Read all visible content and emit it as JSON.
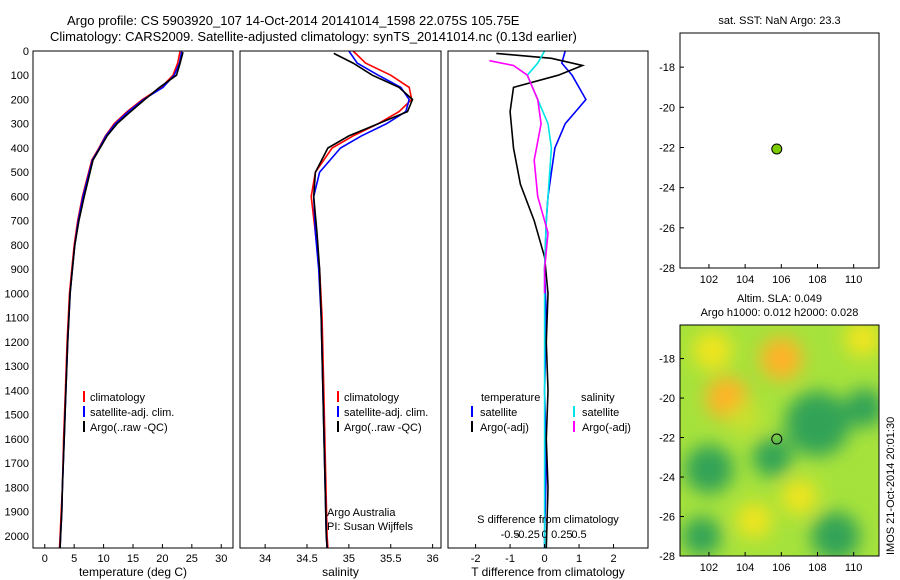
{
  "header": {
    "line1": "Argo profile: CS 5903920_107 14-Oct-2014 20141014_1598 22.075S 105.75E",
    "line2": "Climatology: CARS2009. Satellite-adjusted climatology: synTS_20141014.nc (0.13d earlier)"
  },
  "colors": {
    "climatology": "#ff0000",
    "satellite": "#0000ff",
    "argo": "#000000",
    "sal_satellite": "#00e5e5",
    "sal_argo": "#ff00ff",
    "float": "#7ccd00"
  },
  "depth_axis": {
    "ylim": [
      0,
      2050
    ],
    "ticks": [
      0,
      100,
      200,
      300,
      400,
      500,
      600,
      700,
      800,
      900,
      1000,
      1100,
      1200,
      1300,
      1400,
      1500,
      1600,
      1700,
      1800,
      1900,
      2000
    ]
  },
  "chart_data": [
    {
      "id": "temp",
      "type": "line",
      "xlabel": "temperature (deg C)",
      "xlim": [
        -2,
        32
      ],
      "xticks": [
        0,
        5,
        10,
        15,
        20,
        25,
        30
      ],
      "xtick_labels": [
        "0",
        "5",
        "10",
        "15",
        "20",
        "25",
        "30"
      ],
      "legend": [
        "climatology",
        "satellite-adj. clim.",
        "Argo(..raw -QC)"
      ],
      "series": [
        {
          "name": "climatology",
          "color": "#ff0000",
          "x": [
            23.0,
            22.6,
            21.8,
            19.8,
            16.6,
            14.0,
            11.8,
            10.3,
            9.2,
            8.0,
            6.4,
            5.6,
            5.0,
            4.6,
            4.2,
            3.8,
            3.5,
            3.2,
            3.0,
            2.8,
            2.6,
            2.5
          ],
          "y": [
            0,
            50,
            100,
            150,
            200,
            250,
            300,
            350,
            400,
            450,
            600,
            700,
            800,
            900,
            1000,
            1200,
            1400,
            1600,
            1800,
            1900,
            2000,
            2050
          ]
        },
        {
          "name": "satellite-adj. clim.",
          "color": "#0000ff",
          "x": [
            23.3,
            22.9,
            22.0,
            20.1,
            16.8,
            14.2,
            12.0,
            10.4,
            9.3,
            8.1,
            6.5,
            5.7,
            5.1,
            4.7,
            4.3,
            3.9,
            3.6,
            3.3,
            3.0,
            2.9,
            2.7,
            2.6
          ],
          "y": [
            0,
            50,
            100,
            150,
            200,
            250,
            300,
            350,
            400,
            450,
            600,
            700,
            800,
            900,
            1000,
            1200,
            1400,
            1600,
            1800,
            1900,
            2000,
            2050
          ]
        },
        {
          "name": "Argo(..raw -QC)",
          "color": "#000000",
          "x": [
            23.5,
            23.0,
            22.4,
            19.5,
            17.0,
            14.6,
            12.3,
            10.6,
            9.4,
            8.2,
            6.7,
            5.8,
            5.1,
            4.7,
            4.3,
            3.9,
            3.6,
            3.3,
            3.0,
            2.9,
            2.7,
            2.6
          ],
          "y": [
            5,
            50,
            100,
            150,
            200,
            250,
            300,
            350,
            400,
            450,
            600,
            700,
            800,
            900,
            1000,
            1200,
            1400,
            1600,
            1800,
            1900,
            2000,
            2050
          ]
        }
      ]
    },
    {
      "id": "sal",
      "type": "line",
      "xlabel": "salinity",
      "xlim": [
        33.7,
        36.1
      ],
      "xticks": [
        34,
        34.5,
        35,
        35.5,
        36
      ],
      "xtick_labels": [
        "34",
        "34.5",
        "35",
        "35.5",
        "36"
      ],
      "legend": [
        "climatology",
        "satellite-adj. clim.",
        "Argo(..raw -QC)"
      ],
      "annotation": [
        "Argo Australia",
        "PI: Susan Wijffels"
      ],
      "series": [
        {
          "name": "climatology",
          "color": "#ff0000",
          "x": [
            35.05,
            35.2,
            35.5,
            35.72,
            35.75,
            35.6,
            35.35,
            35.05,
            34.8,
            34.6,
            34.55,
            34.6,
            34.65,
            34.68,
            34.7,
            34.72,
            34.74,
            34.75
          ],
          "y": [
            0,
            50,
            100,
            150,
            200,
            250,
            300,
            350,
            400,
            500,
            600,
            750,
            900,
            1100,
            1400,
            1700,
            2000,
            2050
          ]
        },
        {
          "name": "satellite-adj. clim.",
          "color": "#0000ff",
          "x": [
            35.0,
            35.1,
            35.35,
            35.62,
            35.72,
            35.68,
            35.45,
            35.15,
            34.9,
            34.65,
            34.58,
            34.6,
            34.64,
            34.67,
            34.69,
            34.71,
            34.73,
            34.74
          ],
          "y": [
            0,
            50,
            100,
            150,
            200,
            250,
            300,
            350,
            400,
            500,
            600,
            750,
            900,
            1100,
            1400,
            1700,
            2000,
            2050
          ]
        },
        {
          "name": "Argo(..raw -QC)",
          "color": "#000000",
          "x": [
            34.82,
            35.05,
            35.28,
            35.6,
            35.76,
            35.7,
            35.35,
            35.0,
            34.75,
            34.6,
            34.58,
            34.62,
            34.65,
            34.67,
            34.69,
            34.71,
            34.73,
            34.74
          ],
          "y": [
            10,
            50,
            100,
            150,
            200,
            250,
            300,
            350,
            400,
            500,
            600,
            750,
            900,
            1100,
            1400,
            1700,
            2000,
            2050
          ]
        }
      ]
    },
    {
      "id": "diff",
      "type": "line",
      "xlabel": "T difference from climatology",
      "xlabel_top": "S difference from climatology",
      "xlim": [
        -2.8,
        3.0
      ],
      "xticks": [
        -2,
        -1,
        0,
        1,
        2
      ],
      "xtick_labels": [
        "-2",
        "-1",
        "0",
        "1",
        "2"
      ],
      "xticks_top": [
        -1,
        -0.5,
        0,
        0.5,
        1
      ],
      "xtick_labels_top": [
        "-0.5",
        "-0.25",
        "0",
        "0.25",
        "0.5"
      ],
      "legend_temp_title": "temperature",
      "legend_sal_title": "salinity",
      "legend_labels": [
        "satellite",
        "Argo(-adj)",
        "satellite",
        "Argo(-adj)"
      ],
      "series": [
        {
          "name": "T satellite",
          "color": "#0000ff",
          "x": [
            0.6,
            0.5,
            0.8,
            1.2,
            0.9,
            0.6,
            0.3,
            0.2,
            0.1,
            0.05,
            0.0,
            0.05,
            0.0,
            0.05,
            0.0,
            0.0
          ],
          "y": [
            0,
            50,
            100,
            200,
            250,
            300,
            400,
            500,
            600,
            700,
            900,
            1100,
            1400,
            1700,
            2000,
            2050
          ]
        },
        {
          "name": "T Argo(-adj)",
          "color": "#000000",
          "x": [
            -1.4,
            0.2,
            1.1,
            0.4,
            -0.9,
            -1.0,
            -0.9,
            -0.7,
            -0.3,
            0.0,
            0.1,
            0.05,
            0.1,
            0.05,
            0.1,
            0.05
          ],
          "y": [
            10,
            30,
            60,
            100,
            150,
            250,
            400,
            550,
            700,
            850,
            1000,
            1200,
            1400,
            1600,
            1800,
            2050
          ]
        },
        {
          "name": "S satellite",
          "color": "#00e5e5",
          "x": [
            0.0,
            -0.2,
            -0.5,
            -0.2,
            0.1,
            0.2,
            0.15,
            0.1,
            0.05,
            0.0,
            0.0,
            0.0,
            0.0,
            0.0,
            0.0
          ],
          "y": [
            0,
            50,
            100,
            200,
            300,
            400,
            500,
            600,
            700,
            900,
            1100,
            1400,
            1700,
            2000,
            2050
          ]
        },
        {
          "name": "S Argo(-adj)",
          "color": "#ff00ff",
          "x": [
            -1.6,
            -0.9,
            -0.5,
            -0.2,
            -0.1,
            -0.3,
            -0.2,
            0.1,
            0.0,
            0.0
          ],
          "y": [
            40,
            60,
            100,
            200,
            300,
            450,
            600,
            750,
            900,
            1000
          ]
        }
      ]
    },
    {
      "id": "sst",
      "type": "scatter",
      "title": "sat. SST: NaN Argo: 23.3",
      "xlim": [
        100.4,
        111.4
      ],
      "ylim": [
        -28,
        -16.3
      ],
      "xticks": [
        102,
        104,
        106,
        108,
        110
      ],
      "xtick_labels": [
        "102",
        "104",
        "106",
        "108",
        "110"
      ],
      "yticks": [
        -18,
        -20,
        -22,
        -24,
        -26,
        -28
      ],
      "ytick_labels": [
        "-18",
        "-20",
        "-22",
        "-24",
        "-26",
        "-28"
      ],
      "points": [
        {
          "x": 105.75,
          "y": -22.075
        }
      ]
    },
    {
      "id": "sla",
      "type": "heatmap",
      "title1": "Altim. SLA: 0.049",
      "title2": "Argo h1000: 0.012 h2000: 0.028",
      "xlim": [
        100.4,
        111.4
      ],
      "ylim": [
        -28,
        -16.3
      ],
      "xticks": [
        102,
        104,
        106,
        108,
        110
      ],
      "xtick_labels": [
        "102",
        "104",
        "106",
        "108",
        "110"
      ],
      "yticks": [
        -18,
        -20,
        -22,
        -24,
        -26,
        -28
      ],
      "ytick_labels": [
        "-18",
        "-20",
        "-22",
        "-24",
        "-26",
        "-28"
      ],
      "background": "#a6e23c",
      "blobs": [
        {
          "x": 102.2,
          "y": -17.6,
          "r": 1.2,
          "color": "#f0e41c"
        },
        {
          "x": 103.0,
          "y": -20.0,
          "r": 1.3,
          "color": "#ffb228"
        },
        {
          "x": 106.0,
          "y": -18.0,
          "r": 1.3,
          "color": "#ffb228"
        },
        {
          "x": 110.5,
          "y": -17.0,
          "r": 1.1,
          "color": "#f0e41c"
        },
        {
          "x": 108.0,
          "y": -21.3,
          "r": 2.0,
          "color": "#33a357"
        },
        {
          "x": 110.6,
          "y": -20.5,
          "r": 1.2,
          "color": "#33a357"
        },
        {
          "x": 102.0,
          "y": -23.6,
          "r": 1.5,
          "color": "#33a357"
        },
        {
          "x": 105.5,
          "y": -23.0,
          "r": 1.2,
          "color": "#33a357"
        },
        {
          "x": 109.0,
          "y": -27.0,
          "r": 1.5,
          "color": "#33a357"
        },
        {
          "x": 101.6,
          "y": -27.0,
          "r": 1.2,
          "color": "#33a357"
        },
        {
          "x": 104.5,
          "y": -26.2,
          "r": 1.1,
          "color": "#f0e41c"
        },
        {
          "x": 107.0,
          "y": -25.0,
          "r": 1.1,
          "color": "#f0e41c"
        },
        {
          "x": 104.0,
          "y": -21.0,
          "r": 1.0,
          "color": "#c9e02e"
        }
      ],
      "points": [
        {
          "x": 105.75,
          "y": -22.075
        }
      ]
    }
  ],
  "footer": {
    "watermark": "IMOS 21-Oct-2014 20:01:30"
  }
}
